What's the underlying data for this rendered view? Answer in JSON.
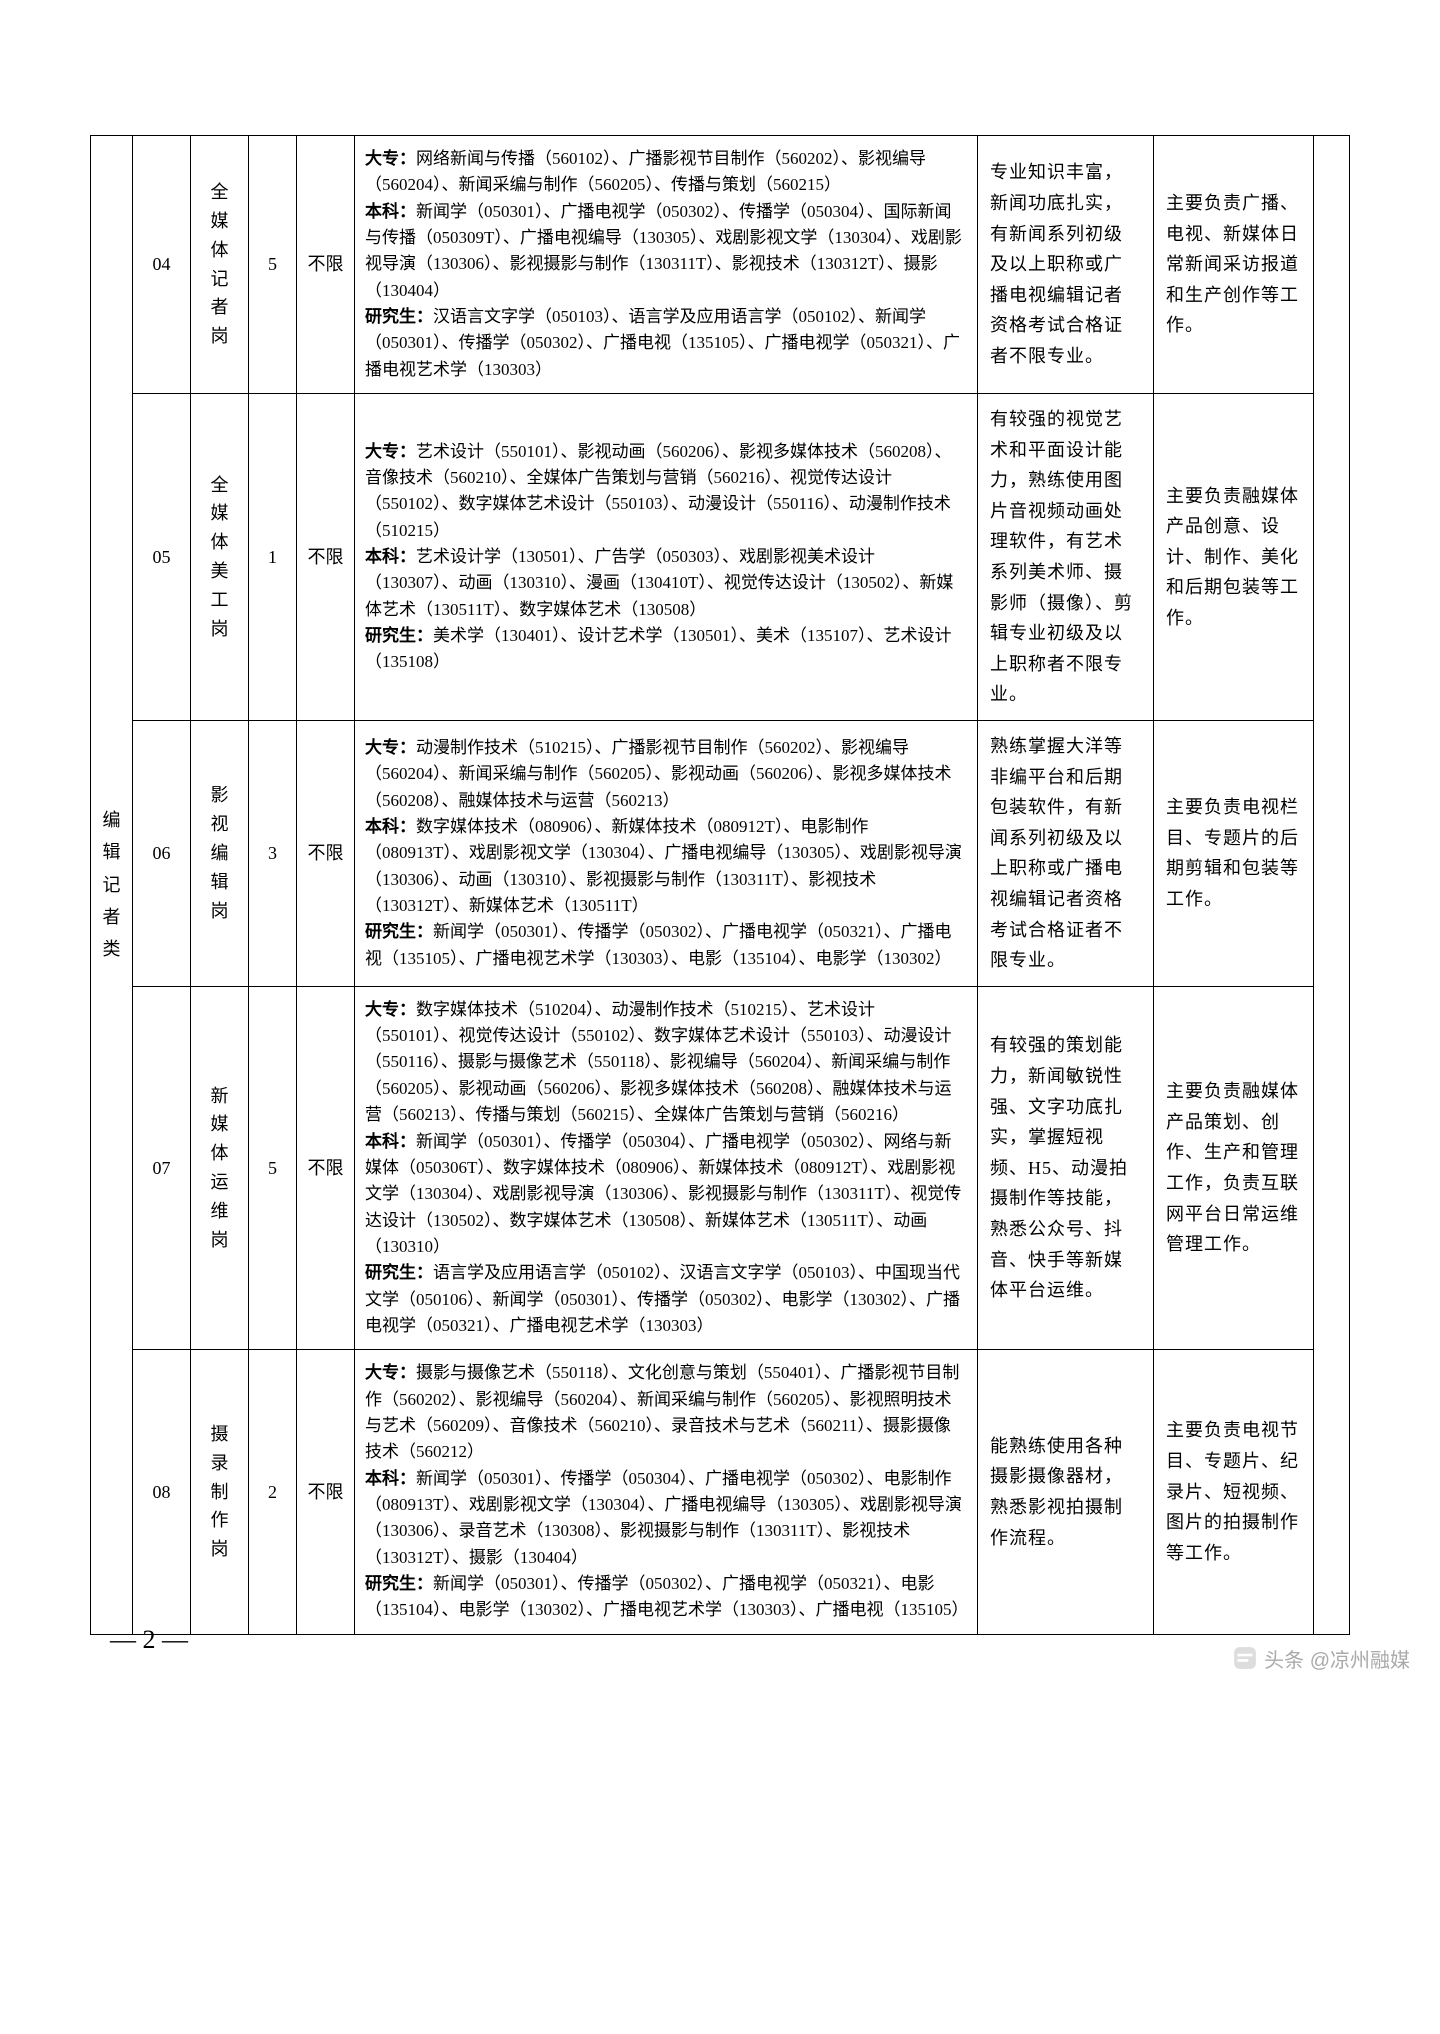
{
  "category": "编辑记者类",
  "pageNumber": "— 2 —",
  "watermark": "头条 @凉州融媒",
  "rows": [
    {
      "no": "04",
      "position": "全媒体记者岗",
      "count": "5",
      "limit": "不限",
      "majors": "<b>大专：</b>网络新闻与传播（560102）、广播影视节目制作（560202）、影视编导（560204）、新闻采编与制作（560205）、传播与策划（560215）<br><b>本科：</b>新闻学（050301）、广播电视学（050302）、传播学（050304）、国际新闻与传播（050309T）、广播电视编导（130305）、戏剧影视文学（130304）、戏剧影视导演（130306）、影视摄影与制作（130311T）、影视技术（130312T）、摄影（130404）<br><b>研究生：</b>汉语言文字学（050103）、语言学及应用语言学（050102）、新闻学（050301）、传播学（050302）、广播电视（135105）、广播电视学（050321）、广播电视艺术学（130303）",
      "cond": "专业知识丰富，新闻功底扎实，有新闻系列初级及以上职称或广播电视编辑记者资格考试合格证者不限专业。",
      "duty": "主要负责广播、电视、新媒体日常新闻采访报道和生产创作等工作。"
    },
    {
      "no": "05",
      "position": "全媒体美工岗",
      "count": "1",
      "limit": "不限",
      "majors": "<b>大专：</b>艺术设计（550101）、影视动画（560206）、影视多媒体技术（560208）、音像技术（560210）、全媒体广告策划与营销（560216）、视觉传达设计（550102）、数字媒体艺术设计（550103）、动漫设计（550116）、动漫制作技术（510215）<br><b>本科：</b>艺术设计学（130501）、广告学（050303）、戏剧影视美术设计（130307）、动画（130310）、漫画（130410T）、视觉传达设计（130502）、新媒体艺术（130511T）、数字媒体艺术（130508）<br><b>研究生：</b>美术学（130401）、设计艺术学（130501）、美术（135107）、艺术设计（135108）",
      "cond": "有较强的视觉艺术和平面设计能力，熟练使用图片音视频动画处理软件，有艺术系列美术师、摄影师（摄像）、剪辑专业初级及以上职称者不限专业。",
      "duty": "主要负责融媒体产品创意、设计、制作、美化和后期包装等工作。"
    },
    {
      "no": "06",
      "position": "影视编辑岗",
      "count": "3",
      "limit": "不限",
      "majors": "<b>大专：</b>动漫制作技术（510215）、广播影视节目制作（560202）、影视编导（560204）、新闻采编与制作（560205）、影视动画（560206）、影视多媒体技术（560208）、融媒体技术与运营（560213）<br><b>本科：</b>数字媒体技术（080906）、新媒体技术（080912T）、电影制作（080913T）、戏剧影视文学（130304）、广播电视编导（130305）、戏剧影视导演（130306）、动画（130310）、影视摄影与制作（130311T）、影视技术（130312T）、新媒体艺术（130511T）<br><b>研究生：</b>新闻学（050301）、传播学（050302）、广播电视学（050321）、广播电视（135105）、广播电视艺术学（130303）、电影（135104）、电影学（130302）",
      "cond": "熟练掌握大洋等非编平台和后期包装软件，有新闻系列初级及以上职称或广播电视编辑记者资格考试合格证者不限专业。",
      "duty": "主要负责电视栏目、专题片的后期剪辑和包装等工作。"
    },
    {
      "no": "07",
      "position": "新媒体运维岗",
      "count": "5",
      "limit": "不限",
      "majors": "<b>大专：</b>数字媒体技术（510204）、动漫制作技术（510215）、艺术设计（550101）、视觉传达设计（550102）、数字媒体艺术设计（550103）、动漫设计（550116）、摄影与摄像艺术（550118）、影视编导（560204）、新闻采编与制作（560205）、影视动画（560206）、影视多媒体技术（560208）、融媒体技术与运营（560213）、传播与策划（560215）、全媒体广告策划与营销（560216）<br><b>本科：</b>新闻学（050301）、传播学（050304）、广播电视学（050302）、网络与新媒体（050306T）、数字媒体技术（080906）、新媒体技术（080912T）、戏剧影视文学（130304）、戏剧影视导演（130306）、影视摄影与制作（130311T）、视觉传达设计（130502）、数字媒体艺术（130508）、新媒体艺术（130511T）、动画（130310）<br><b>研究生：</b>语言学及应用语言学（050102）、汉语言文字学（050103）、中国现当代文学（050106）、新闻学（050301）、传播学（050302）、电影学（130302）、广播电视学（050321）、广播电视艺术学（130303）",
      "cond": "有较强的策划能力，新闻敏锐性强、文字功底扎实，掌握短视频、H5、动漫拍摄制作等技能，熟悉公众号、抖音、快手等新媒体平台运维。",
      "duty": "主要负责融媒体产品策划、创作、生产和管理工作，负责互联网平台日常运维管理工作。"
    },
    {
      "no": "08",
      "position": "摄录制作岗",
      "count": "2",
      "limit": "不限",
      "majors": "<b>大专：</b>摄影与摄像艺术（550118）、文化创意与策划（550401）、广播影视节目制作（560202）、影视编导（560204）、新闻采编与制作（560205）、影视照明技术与艺术（560209）、音像技术（560210）、录音技术与艺术（560211）、摄影摄像技术（560212）<br><b>本科：</b>新闻学（050301）、传播学（050304）、广播电视学（050302）、电影制作（080913T）、戏剧影视文学（130304）、广播电视编导（130305）、戏剧影视导演（130306）、录音艺术（130308）、影视摄影与制作（130311T）、影视技术（130312T）、摄影（130404）<br><b>研究生：</b>新闻学（050301）、传播学（050302）、广播电视学（050321）、电影（135104）、电影学（130302）、广播电视艺术学（130303）、广播电视（135105）",
      "cond": "能熟练使用各种摄影摄像器材，熟悉影视拍摄制作流程。",
      "duty": "主要负责电视节目、专题片、纪录片、短视频、图片的拍摄制作等工作。"
    }
  ]
}
